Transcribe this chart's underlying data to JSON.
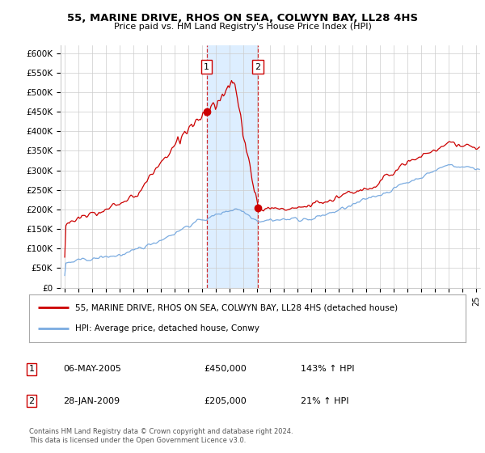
{
  "title": "55, MARINE DRIVE, RHOS ON SEA, COLWYN BAY, LL28 4HS",
  "subtitle": "Price paid vs. HM Land Registry's House Price Index (HPI)",
  "ylabel_ticks": [
    "£0",
    "£50K",
    "£100K",
    "£150K",
    "£200K",
    "£250K",
    "£300K",
    "£350K",
    "£400K",
    "£450K",
    "£500K",
    "£550K",
    "£600K"
  ],
  "ylim": [
    0,
    620000
  ],
  "xlim_start": 1994.7,
  "xlim_end": 2025.3,
  "transaction1_date": 2005.35,
  "transaction1_price": 450000,
  "transaction2_date": 2009.08,
  "transaction2_price": 205000,
  "legend_line1": "55, MARINE DRIVE, RHOS ON SEA, COLWYN BAY, LL28 4HS (detached house)",
  "legend_line2": "HPI: Average price, detached house, Conwy",
  "table_row1_num": "1",
  "table_row1_date": "06-MAY-2005",
  "table_row1_price": "£450,000",
  "table_row1_hpi": "143% ↑ HPI",
  "table_row2_num": "2",
  "table_row2_date": "28-JAN-2009",
  "table_row2_price": "£205,000",
  "table_row2_hpi": "21% ↑ HPI",
  "footnote": "Contains HM Land Registry data © Crown copyright and database right 2024.\nThis data is licensed under the Open Government Licence v3.0.",
  "red_color": "#cc0000",
  "blue_color": "#7aabe0",
  "highlight_color": "#ddeeff",
  "grid_color": "#cccccc",
  "background_color": "#ffffff"
}
